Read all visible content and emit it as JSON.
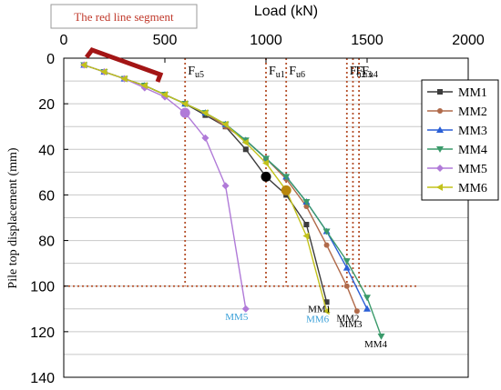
{
  "chart_data": {
    "type": "line",
    "xlabel": "Load (kN)",
    "ylabel": "Pile top displacement (mm)",
    "xlim": [
      0,
      2000
    ],
    "ylim": [
      0,
      140
    ],
    "x_ticks": [
      "0",
      "500",
      "1000",
      "1500",
      "2000"
    ],
    "y_ticks": [
      "0",
      "20",
      "40",
      "60",
      "80",
      "100",
      "120",
      "140"
    ],
    "annotation": "The red line segment",
    "reference_lines": [
      {
        "label": "Fu5",
        "x": 600
      },
      {
        "label": "Fu1",
        "x": 1000
      },
      {
        "label": "Fu6",
        "x": 1100
      },
      {
        "label": "Fu2",
        "x": 1400
      },
      {
        "label": "Fu3",
        "x": 1430
      },
      {
        "label": "Fu4",
        "x": 1460
      }
    ],
    "displacement_limit": 100,
    "series": [
      {
        "name": "MM1",
        "color": "#3c3c3c",
        "marker": "square",
        "x": [
          100,
          200,
          300,
          400,
          500,
          600,
          700,
          800,
          900,
          1000,
          1100,
          1200,
          1300
        ],
        "y": [
          3,
          6,
          9,
          12,
          16,
          20,
          25,
          30,
          40,
          52,
          60,
          73,
          107
        ],
        "end_label": "MM1",
        "end_label_color": "#000000"
      },
      {
        "name": "MM2",
        "color": "#b06a4a",
        "marker": "circle",
        "x": [
          100,
          200,
          300,
          400,
          500,
          600,
          700,
          800,
          900,
          1000,
          1100,
          1200,
          1300,
          1400,
          1450
        ],
        "y": [
          3,
          6,
          9,
          12,
          16,
          20,
          24,
          30,
          36,
          44,
          53,
          65,
          82,
          100,
          111
        ],
        "end_label": "MM2",
        "end_label_color": "#000000"
      },
      {
        "name": "MM3",
        "color": "#2a5fd6",
        "marker": "triangle-up",
        "x": [
          100,
          200,
          300,
          400,
          500,
          600,
          700,
          800,
          900,
          1000,
          1100,
          1200,
          1300,
          1400,
          1500
        ],
        "y": [
          3,
          6,
          9,
          12,
          16,
          20,
          24,
          29,
          36,
          44,
          52,
          63,
          76,
          92,
          110
        ],
        "end_label": "MM3",
        "end_label_color": "#000000"
      },
      {
        "name": "MM4",
        "color": "#3a9a6a",
        "marker": "triangle-down",
        "x": [
          100,
          200,
          300,
          400,
          500,
          600,
          700,
          800,
          900,
          1000,
          1100,
          1200,
          1300,
          1400,
          1500,
          1570
        ],
        "y": [
          3,
          6,
          9,
          12,
          16,
          20,
          24,
          29,
          36,
          44,
          52,
          63,
          76,
          89,
          105,
          122
        ],
        "end_label": "MM4",
        "end_label_color": "#000000"
      },
      {
        "name": "MM5",
        "color": "#b07ad8",
        "marker": "diamond",
        "x": [
          100,
          200,
          300,
          400,
          500,
          600,
          700,
          800,
          900
        ],
        "y": [
          3,
          6,
          9,
          13,
          17,
          24,
          35,
          56,
          110
        ],
        "end_label": "MM5",
        "end_label_color": "#3aa0d8"
      },
      {
        "name": "MM6",
        "color": "#c2c21a",
        "marker": "triangle-left",
        "x": [
          100,
          200,
          300,
          400,
          500,
          600,
          700,
          800,
          900,
          1000,
          1100,
          1200,
          1300
        ],
        "y": [
          3,
          6,
          9,
          12,
          16,
          20,
          24,
          29,
          37,
          46,
          58,
          78,
          111
        ],
        "end_label": "MM6",
        "end_label_color": "#3aa0d8"
      }
    ],
    "highlight_points": [
      {
        "x": 600,
        "y": 24,
        "color": "#b07ad8"
      },
      {
        "x": 1000,
        "y": 52,
        "color": "#000000"
      },
      {
        "x": 1100,
        "y": 58,
        "color": "#b8860b"
      }
    ],
    "grid": true,
    "legend_position": "right"
  }
}
